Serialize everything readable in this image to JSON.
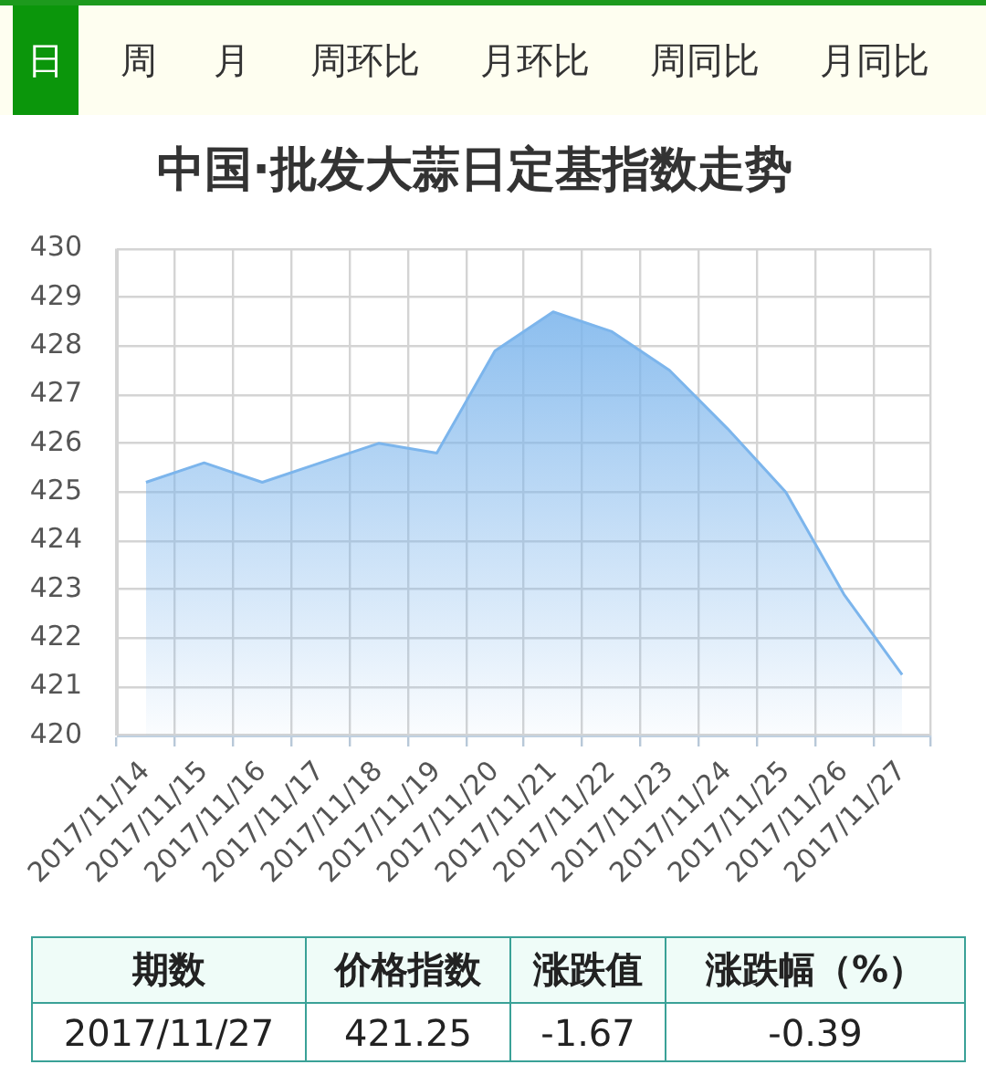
{
  "chart_data": {
    "type": "area",
    "title": "中国·批发大蒜日定基指数走势",
    "categories": [
      "2017/11/14",
      "2017/11/15",
      "2017/11/16",
      "2017/11/17",
      "2017/11/18",
      "2017/11/19",
      "2017/11/20",
      "2017/11/21",
      "2017/11/22",
      "2017/11/23",
      "2017/11/24",
      "2017/11/25",
      "2017/11/26",
      "2017/11/27"
    ],
    "values": [
      425.2,
      425.6,
      425.2,
      425.6,
      426.0,
      425.8,
      427.9,
      428.7,
      428.3,
      427.5,
      426.3,
      425.0,
      422.9,
      421.25
    ],
    "color": "#7cb5ec",
    "ylim": [
      420,
      430
    ],
    "yticks": [
      420,
      421,
      422,
      423,
      424,
      425,
      426,
      427,
      428,
      429,
      430
    ],
    "grid": true,
    "marker": "none",
    "annotations": [
      "日",
      "周",
      "月",
      "周环比",
      "月环比",
      "周同比",
      "月同比",
      "期数",
      "价格指数",
      "涨跌值",
      "涨跌幅（%）",
      "2017/11/27",
      "421.25",
      "-1.67",
      "-0.39"
    ]
  }
}
